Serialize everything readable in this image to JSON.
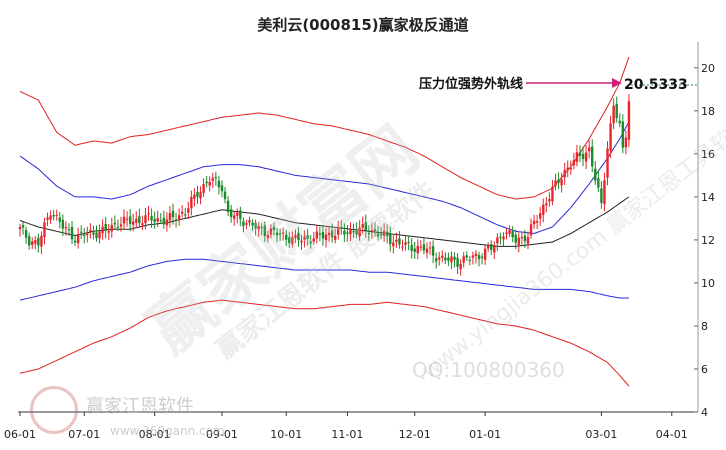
{
  "watermark": {
    "big": "赢家财富网",
    "mid": "赢家江恩软件 股票软件",
    "small": "www.yingjia360.com 赢家江恩工具软件",
    "qq": "QQ:100800360",
    "logo_text": "赢家江恩软件",
    "logo_url": "www.360gann.com"
  },
  "colors": {
    "up": "#e8242c",
    "down": "#1a8a2a",
    "outer_band": "#e02020",
    "inner_band": "#2828d8",
    "mid_line": "#202020",
    "annotation": "#d0207a"
  },
  "chart_data": {
    "type": "candlestick",
    "title": "美利云(000815)赢家极反通道",
    "ylim": [
      4,
      21.2
    ],
    "y_ticks": [
      4,
      6,
      8,
      10,
      12,
      14,
      16,
      18,
      20
    ],
    "x_tick_labels": [
      "06-01",
      "07-01",
      "08-01",
      "09-01",
      "10-01",
      "11-01",
      "12-01",
      "01-01",
      "03-01",
      "04-01"
    ],
    "x_tick_index": [
      0,
      21,
      44,
      66,
      87,
      107,
      129,
      152,
      190,
      213
    ],
    "annotation": {
      "label": "压力位强势外轨线",
      "value": "20.5333"
    },
    "band_end_index": 199,
    "band_keys": [
      [
        0,
        18.9,
        15.9,
        12.9,
        9.2,
        5.8
      ],
      [
        6,
        18.5,
        15.3,
        12.6,
        9.4,
        6.0
      ],
      [
        12,
        17.0,
        14.5,
        12.4,
        9.6,
        6.4
      ],
      [
        18,
        16.4,
        14.0,
        12.2,
        9.8,
        6.8
      ],
      [
        24,
        16.6,
        14.0,
        12.4,
        10.1,
        7.2
      ],
      [
        30,
        16.5,
        13.9,
        12.5,
        10.3,
        7.5
      ],
      [
        36,
        16.8,
        14.1,
        12.5,
        10.5,
        7.9
      ],
      [
        42,
        16.9,
        14.5,
        12.7,
        10.8,
        8.4
      ],
      [
        48,
        17.1,
        14.8,
        12.8,
        11.0,
        8.7
      ],
      [
        54,
        17.3,
        15.1,
        13.0,
        11.1,
        8.9
      ],
      [
        60,
        17.5,
        15.4,
        13.2,
        11.1,
        9.1
      ],
      [
        66,
        17.7,
        15.5,
        13.4,
        11.0,
        9.2
      ],
      [
        72,
        17.8,
        15.5,
        13.3,
        10.9,
        9.1
      ],
      [
        78,
        17.9,
        15.4,
        13.2,
        10.8,
        9.0
      ],
      [
        84,
        17.8,
        15.2,
        13.0,
        10.7,
        8.9
      ],
      [
        90,
        17.6,
        15.0,
        12.8,
        10.6,
        8.8
      ],
      [
        96,
        17.4,
        14.9,
        12.7,
        10.6,
        8.8
      ],
      [
        102,
        17.3,
        14.8,
        12.6,
        10.6,
        8.9
      ],
      [
        108,
        17.1,
        14.7,
        12.5,
        10.6,
        9.0
      ],
      [
        114,
        16.9,
        14.6,
        12.4,
        10.5,
        9.0
      ],
      [
        120,
        16.6,
        14.4,
        12.3,
        10.5,
        9.1
      ],
      [
        126,
        16.3,
        14.2,
        12.2,
        10.4,
        9.0
      ],
      [
        132,
        15.9,
        14.0,
        12.1,
        10.3,
        8.9
      ],
      [
        138,
        15.4,
        13.8,
        12.0,
        10.2,
        8.7
      ],
      [
        144,
        14.9,
        13.5,
        11.9,
        10.1,
        8.5
      ],
      [
        150,
        14.5,
        13.1,
        11.8,
        10.0,
        8.3
      ],
      [
        156,
        14.1,
        12.7,
        11.7,
        9.9,
        8.1
      ],
      [
        162,
        13.9,
        12.4,
        11.7,
        9.8,
        8.0
      ],
      [
        168,
        14.0,
        12.3,
        11.8,
        9.7,
        7.8
      ],
      [
        174,
        14.4,
        12.6,
        11.9,
        9.7,
        7.5
      ],
      [
        180,
        15.4,
        13.5,
        12.3,
        9.7,
        7.2
      ],
      [
        186,
        16.7,
        14.6,
        12.8,
        9.6,
        6.8
      ],
      [
        192,
        18.2,
        15.8,
        13.3,
        9.4,
        6.3
      ],
      [
        196,
        19.3,
        16.7,
        13.7,
        9.3,
        5.7
      ],
      [
        199,
        20.5,
        17.5,
        14.0,
        9.3,
        5.2
      ]
    ],
    "close_keys": [
      [
        0,
        12.5
      ],
      [
        3,
        12.0
      ],
      [
        6,
        11.8
      ],
      [
        10,
        13.4
      ],
      [
        14,
        12.6
      ],
      [
        18,
        12.1
      ],
      [
        22,
        12.3
      ],
      [
        28,
        12.4
      ],
      [
        32,
        12.8
      ],
      [
        38,
        12.9
      ],
      [
        42,
        13.0
      ],
      [
        48,
        12.9
      ],
      [
        54,
        13.3
      ],
      [
        58,
        14.2
      ],
      [
        62,
        14.8
      ],
      [
        66,
        14.5
      ],
      [
        68,
        13.2
      ],
      [
        72,
        13.0
      ],
      [
        78,
        12.5
      ],
      [
        84,
        12.3
      ],
      [
        90,
        12.0
      ],
      [
        96,
        12.1
      ],
      [
        102,
        12.3
      ],
      [
        108,
        12.4
      ],
      [
        114,
        12.5
      ],
      [
        120,
        12.1
      ],
      [
        126,
        11.7
      ],
      [
        132,
        11.6
      ],
      [
        138,
        11.1
      ],
      [
        144,
        11.0
      ],
      [
        150,
        11.3
      ],
      [
        154,
        11.6
      ],
      [
        158,
        12.4
      ],
      [
        162,
        12.0
      ],
      [
        166,
        12.2
      ],
      [
        170,
        13.3
      ],
      [
        174,
        14.3
      ],
      [
        178,
        15.2
      ],
      [
        182,
        15.8
      ],
      [
        186,
        16.2
      ],
      [
        188,
        14.8
      ],
      [
        190,
        13.6
      ],
      [
        192,
        16.4
      ],
      [
        194,
        18.2
      ],
      [
        196,
        17.3
      ],
      [
        197,
        16.1
      ],
      [
        198,
        16.9
      ],
      [
        199,
        18.7
      ]
    ]
  }
}
